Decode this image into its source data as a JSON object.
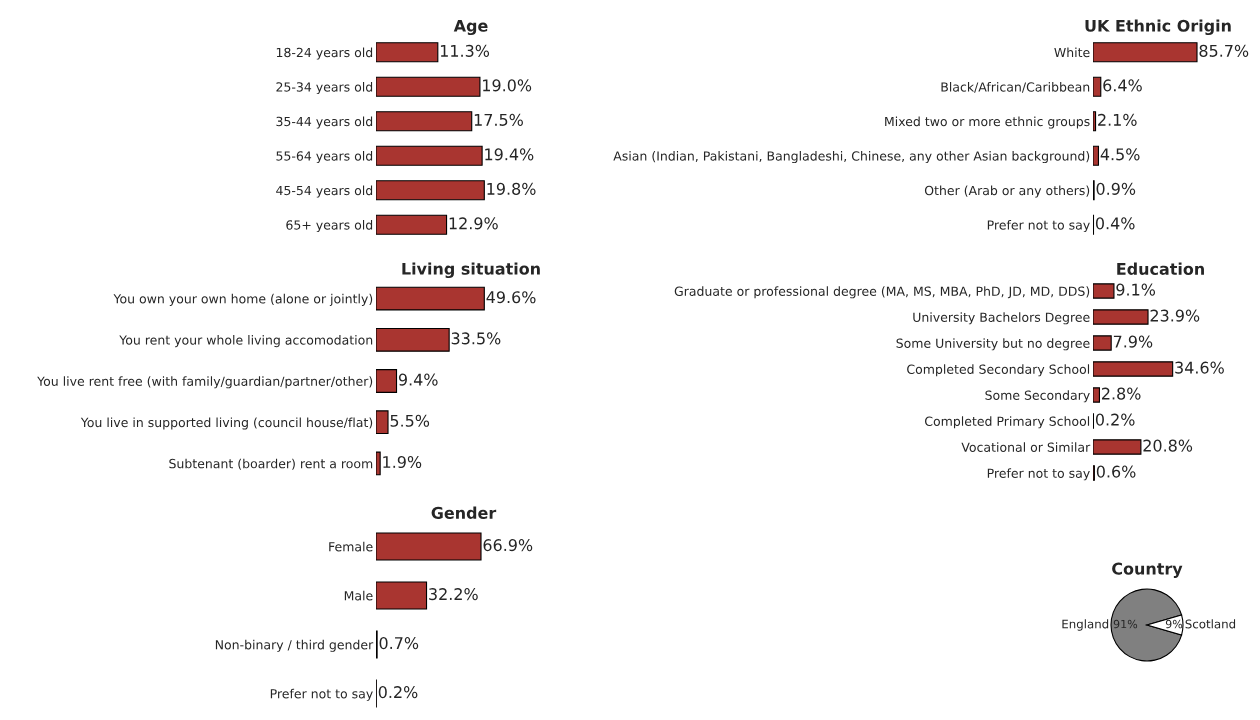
{
  "chart_data": [
    {
      "type": "bar",
      "orientation": "horizontal",
      "title": "Age",
      "categories": [
        "18-24 years old",
        "25-34 years old",
        "35-44 years old",
        "55-64 years old",
        "45-54 years old",
        "65+ years old"
      ],
      "values": [
        11.3,
        19.0,
        17.5,
        19.4,
        19.8,
        12.9
      ],
      "value_labels": [
        "11.3%",
        "19.0%",
        "17.5%",
        "19.4%",
        "19.8%",
        "12.9%"
      ],
      "color": "#a93530"
    },
    {
      "type": "bar",
      "orientation": "horizontal",
      "title": "UK Ethnic Origin",
      "categories": [
        "White",
        "Black/African/Caribbean",
        "Mixed two or more ethnic groups",
        "Asian (Indian, Pakistani, Bangladeshi, Chinese, any other Asian background)",
        "Other (Arab or any others)",
        "Prefer not to say"
      ],
      "values": [
        85.7,
        6.4,
        2.1,
        4.5,
        0.9,
        0.4
      ],
      "value_labels": [
        "85.7%",
        "6.4%",
        "2.1%",
        "4.5%",
        "0.9%",
        "0.4%"
      ],
      "color": "#a93530"
    },
    {
      "type": "bar",
      "orientation": "horizontal",
      "title": "Living situation",
      "categories": [
        "You own your own home (alone or jointly)",
        "You rent your whole living accomodation",
        "You live rent free (with family/guardian/partner/other)",
        "You live in supported living (council house/flat)",
        "Subtenant (boarder) rent a room"
      ],
      "values": [
        49.6,
        33.5,
        9.4,
        5.5,
        1.9
      ],
      "value_labels": [
        "49.6%",
        "33.5%",
        "9.4%",
        "5.5%",
        "1.9%"
      ],
      "color": "#a93530"
    },
    {
      "type": "bar",
      "orientation": "horizontal",
      "title": "Education",
      "categories": [
        "Graduate or professional degree (MA, MS, MBA, PhD, JD, MD, DDS)",
        "University Bachelors Degree",
        "Some University but no degree",
        "Completed Secondary School",
        "Some Secondary",
        "Completed Primary School",
        "Vocational or Similar",
        "Prefer not to say"
      ],
      "values": [
        9.1,
        23.9,
        7.9,
        34.6,
        2.8,
        0.2,
        20.8,
        0.6
      ],
      "value_labels": [
        "9.1%",
        "23.9%",
        "7.9%",
        "34.6%",
        "2.8%",
        "0.2%",
        "20.8%",
        "0.6%"
      ],
      "color": "#a93530"
    },
    {
      "type": "bar",
      "orientation": "horizontal",
      "title": "Gender",
      "categories": [
        "Female",
        "Male",
        "Non-binary / third gender",
        "Prefer not to say"
      ],
      "values": [
        66.9,
        32.2,
        0.7,
        0.2
      ],
      "value_labels": [
        "66.9%",
        "32.2%",
        "0.7%",
        "0.2%"
      ],
      "color": "#a93530"
    },
    {
      "type": "pie",
      "title": "Country",
      "categories": [
        "England",
        "Scotland"
      ],
      "values": [
        91,
        9
      ],
      "value_labels": [
        "91%",
        "9%"
      ],
      "colors": [
        "#808080",
        "#ffffff"
      ]
    }
  ]
}
